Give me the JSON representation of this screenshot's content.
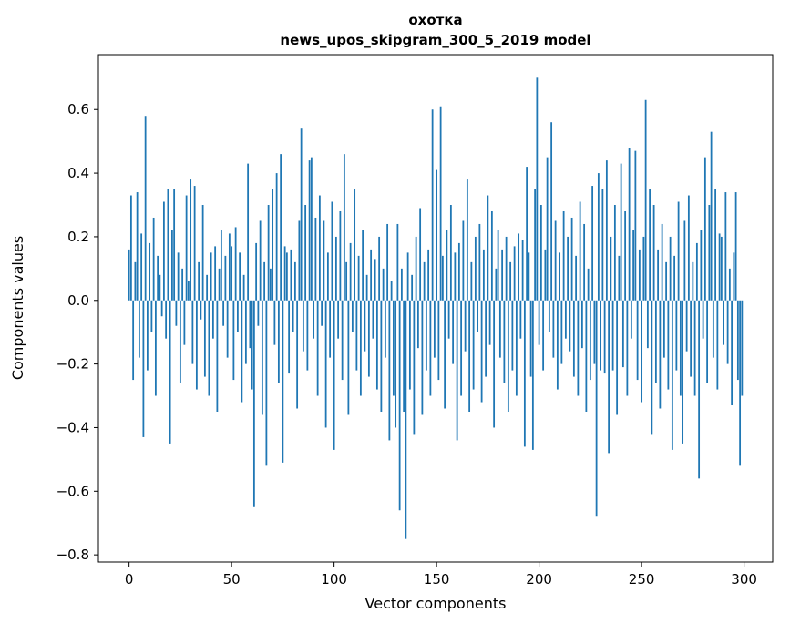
{
  "chart": {
    "title_line1": "охотка",
    "title_line2": "news_upos_skipgram_300_5_2019 model"
  },
  "chart_data": {
    "type": "bar",
    "title": "охотка\nnews_upos_skipgram_300_5_2019 model",
    "xlabel": "Vector components",
    "ylabel": "Components values",
    "xlim": [
      -14.95,
      313.95
    ],
    "ylim": [
      -0.8225,
      0.7725
    ],
    "xticks": [
      0,
      50,
      100,
      150,
      200,
      250,
      300
    ],
    "xtick_labels": [
      "0",
      "50",
      "100",
      "150",
      "200",
      "250",
      "300"
    ],
    "yticks": [
      -0.8,
      -0.6,
      -0.4,
      -0.2,
      0.0,
      0.2,
      0.4,
      0.6
    ],
    "ytick_labels": [
      "−0.8",
      "−0.6",
      "−0.4",
      "−0.2",
      "0.0",
      "0.2",
      "0.4",
      "0.6"
    ],
    "bar_color": "#1f77b4",
    "grid": false,
    "legend": "none",
    "values": [
      0.16,
      0.33,
      -0.25,
      0.12,
      0.34,
      -0.18,
      0.21,
      -0.43,
      0.58,
      -0.22,
      0.18,
      -0.1,
      0.26,
      -0.3,
      0.14,
      0.08,
      -0.05,
      0.31,
      -0.12,
      0.35,
      -0.45,
      0.22,
      0.35,
      -0.08,
      0.15,
      -0.26,
      0.1,
      -0.14,
      0.33,
      0.06,
      0.38,
      -0.2,
      0.36,
      -0.28,
      0.12,
      -0.06,
      0.3,
      -0.24,
      0.08,
      -0.3,
      0.15,
      -0.12,
      0.17,
      -0.35,
      0.1,
      0.22,
      -0.08,
      0.14,
      -0.18,
      0.21,
      0.17,
      -0.25,
      0.23,
      -0.1,
      0.15,
      -0.32,
      0.08,
      -0.2,
      0.43,
      -0.15,
      -0.28,
      -0.65,
      0.18,
      -0.08,
      0.25,
      -0.36,
      0.12,
      -0.52,
      0.3,
      0.1,
      0.35,
      -0.14,
      0.4,
      -0.26,
      0.46,
      -0.51,
      0.17,
      0.15,
      -0.23,
      0.16,
      -0.1,
      0.12,
      -0.34,
      0.25,
      0.54,
      -0.16,
      0.3,
      -0.22,
      0.44,
      0.45,
      -0.12,
      0.26,
      -0.3,
      0.33,
      -0.08,
      0.25,
      -0.4,
      0.15,
      -0.18,
      0.31,
      -0.47,
      0.2,
      -0.12,
      0.28,
      -0.25,
      0.46,
      0.12,
      -0.36,
      0.18,
      -0.1,
      0.35,
      -0.22,
      0.14,
      -0.3,
      0.22,
      -0.16,
      0.08,
      -0.24,
      0.16,
      -0.12,
      0.13,
      -0.28,
      0.2,
      -0.35,
      0.1,
      -0.18,
      0.24,
      -0.44,
      0.06,
      -0.3,
      -0.4,
      0.24,
      -0.66,
      0.1,
      -0.35,
      -0.75,
      0.15,
      -0.28,
      0.08,
      -0.42,
      0.2,
      -0.15,
      0.29,
      -0.36,
      0.12,
      -0.22,
      0.16,
      -0.3,
      0.6,
      -0.18,
      0.41,
      -0.25,
      0.61,
      0.14,
      -0.34,
      0.22,
      -0.12,
      0.3,
      -0.2,
      0.15,
      -0.44,
      0.18,
      -0.3,
      0.25,
      -0.16,
      0.38,
      -0.35,
      0.12,
      -0.28,
      0.2,
      -0.1,
      0.24,
      -0.32,
      0.16,
      -0.24,
      0.33,
      -0.14,
      0.28,
      -0.4,
      0.1,
      0.22,
      -0.18,
      0.16,
      -0.26,
      0.2,
      -0.35,
      0.12,
      -0.22,
      0.17,
      -0.3,
      0.21,
      -0.12,
      0.19,
      -0.46,
      0.42,
      0.15,
      -0.24,
      -0.47,
      0.35,
      0.7,
      -0.14,
      0.3,
      -0.22,
      0.16,
      0.45,
      -0.1,
      0.56,
      -0.18,
      0.25,
      -0.28,
      0.15,
      -0.2,
      0.28,
      -0.12,
      0.2,
      -0.16,
      0.26,
      -0.24,
      0.14,
      -0.3,
      0.31,
      -0.15,
      0.24,
      -0.35,
      0.1,
      -0.25,
      0.36,
      -0.2,
      -0.68,
      0.4,
      -0.22,
      0.35,
      -0.23,
      0.44,
      -0.48,
      0.2,
      -0.22,
      0.3,
      -0.36,
      0.14,
      0.43,
      -0.21,
      0.28,
      -0.3,
      0.48,
      -0.12,
      0.22,
      0.47,
      -0.25,
      0.16,
      -0.32,
      0.2,
      0.63,
      -0.15,
      0.35,
      -0.42,
      0.3,
      -0.26,
      0.16,
      -0.34,
      0.24,
      -0.18,
      0.12,
      -0.28,
      0.2,
      -0.47,
      0.14,
      -0.22,
      0.31,
      -0.3,
      -0.45,
      0.25,
      -0.16,
      0.33,
      -0.24,
      0.12,
      -0.3,
      0.18,
      -0.56,
      0.22,
      -0.12,
      0.45,
      -0.26,
      0.3,
      0.53,
      -0.18,
      0.35,
      -0.28,
      0.21,
      0.2,
      -0.14,
      0.34,
      -0.2,
      0.1,
      -0.33,
      0.15,
      0.34,
      -0.25,
      -0.52,
      -0.3
    ]
  }
}
